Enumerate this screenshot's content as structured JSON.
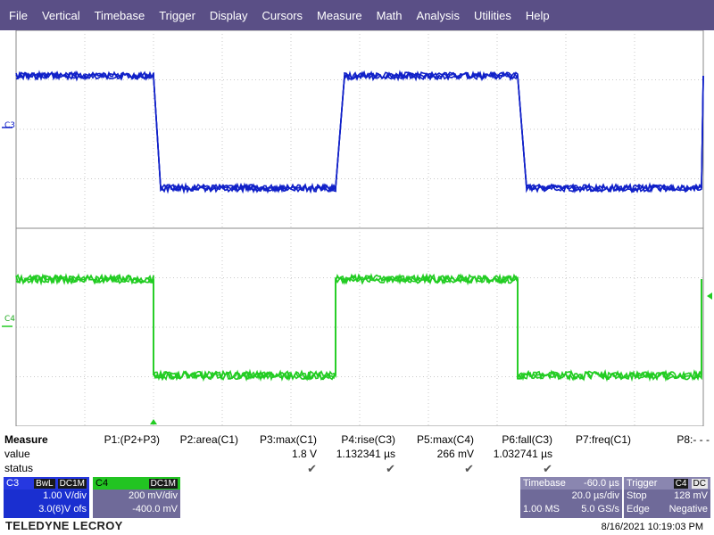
{
  "menu": [
    "File",
    "Vertical",
    "Timebase",
    "Trigger",
    "Display",
    "Cursors",
    "Measure",
    "Math",
    "Analysis",
    "Utilities",
    "Help"
  ],
  "channels": {
    "c3": {
      "label": "C3",
      "color": "#1020c8"
    },
    "c4": {
      "label": "C4",
      "color": "#22cc22"
    }
  },
  "measure": {
    "title": "Measure",
    "row_labels": {
      "value": "value",
      "status": "status"
    },
    "params": [
      {
        "name": "P1:(P2+P3)",
        "value": "",
        "status": ""
      },
      {
        "name": "P2:area(C1)",
        "value": "",
        "status": ""
      },
      {
        "name": "P3:max(C1)",
        "value": "1.8 V",
        "status": "✔"
      },
      {
        "name": "P4:rise(C3)",
        "value": "1.132341 µs",
        "status": "✔"
      },
      {
        "name": "P5:max(C4)",
        "value": "266 mV",
        "status": "✔"
      },
      {
        "name": "P6:fall(C3)",
        "value": "1.032741 µs",
        "status": "✔"
      },
      {
        "name": "P7:freq(C1)",
        "value": "",
        "status": ""
      },
      {
        "name": "P8:- - -",
        "value": "",
        "status": ""
      }
    ]
  },
  "c3_box": {
    "label": "C3",
    "tags": [
      "BwL",
      "DC1M"
    ],
    "line1": "1.00 V/div",
    "line2": "3.0(6)V ofs",
    "color": "#1a2fd0"
  },
  "c4_box": {
    "label": "C4",
    "tag": "DC1M",
    "line1": "200 mV/div",
    "line2": "-400.0 mV",
    "color": "#22c422"
  },
  "timebase": {
    "label": "Timebase",
    "offset": "-60.0 µs",
    "div": "20.0 µs/div",
    "samples": "1.00 MS",
    "rate": "5.0 GS/s"
  },
  "trigger": {
    "label": "Trigger",
    "src": "C4",
    "coupling": "DC",
    "mode": "Stop",
    "level": "128 mV",
    "type": "Edge",
    "slope": "Negative"
  },
  "brand": "TELEDYNE LECROY",
  "datetime": "8/16/2021 10:19:03 PM",
  "colors": {
    "menubar": "#5a4f86",
    "box_bg": "#6f6a99",
    "grid": "#c8c8c8"
  }
}
